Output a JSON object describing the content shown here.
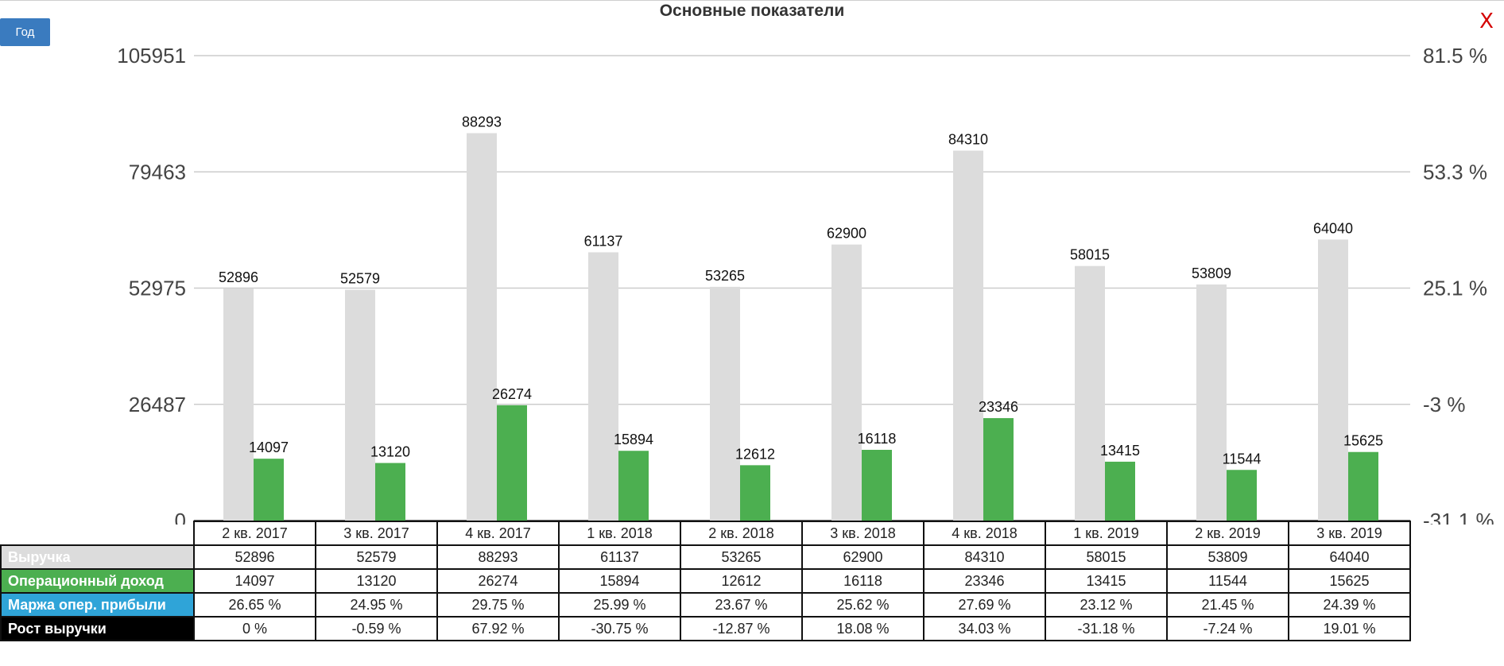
{
  "title": "Основные показатели",
  "period_button": "Год",
  "close_label": "X",
  "chart_data": {
    "type": "bar",
    "title": "Основные показатели",
    "categories": [
      "2 кв. 2017",
      "3 кв. 2017",
      "4 кв. 2017",
      "1 кв. 2018",
      "2 кв. 2018",
      "3 кв. 2018",
      "4 кв. 2018",
      "1 кв. 2019",
      "2 кв. 2019",
      "3 кв. 2019"
    ],
    "series": [
      {
        "name": "Выручка",
        "color": "#dcdcdc",
        "values": [
          52896,
          52579,
          88293,
          61137,
          53265,
          62900,
          84310,
          58015,
          53809,
          64040
        ]
      },
      {
        "name": "Операционный доход",
        "color": "#4caf50",
        "values": [
          14097,
          13120,
          26274,
          15894,
          12612,
          16118,
          23346,
          13415,
          11544,
          15625
        ]
      }
    ],
    "ylim": [
      0,
      105951
    ],
    "y_ticks": [
      "0",
      "26487",
      "52975",
      "79463",
      "105951"
    ],
    "y2_ticks": [
      "-31.1 %",
      "-3 %",
      "25.1 %",
      "53.3 %",
      "81.5 %"
    ],
    "grid": true
  },
  "table": {
    "rows": [
      {
        "label": "Выручка",
        "color": "#dcdcdc",
        "text_color": "#ffffff",
        "values": [
          "52896",
          "52579",
          "88293",
          "61137",
          "53265",
          "62900",
          "84310",
          "58015",
          "53809",
          "64040"
        ]
      },
      {
        "label": "Операционный доход",
        "color": "#4caf50",
        "text_color": "#ffffff",
        "values": [
          "14097",
          "13120",
          "26274",
          "15894",
          "12612",
          "16118",
          "23346",
          "13415",
          "11544",
          "15625"
        ]
      },
      {
        "label": "Маржа опер. прибыли",
        "color": "#2fa4d8",
        "text_color": "#ffffff",
        "values": [
          "26.65 %",
          "24.95 %",
          "29.75 %",
          "25.99 %",
          "23.67 %",
          "25.62 %",
          "27.69 %",
          "23.12 %",
          "21.45 %",
          "24.39 %"
        ]
      },
      {
        "label": "Рост выручки",
        "color": "#000000",
        "text_color": "#ffffff",
        "values": [
          "0 %",
          "-0.59 %",
          "67.92 %",
          "-30.75 %",
          "-12.87 %",
          "18.08 %",
          "34.03 %",
          "-31.18 %",
          "-7.24 %",
          "19.01 %"
        ]
      }
    ]
  }
}
